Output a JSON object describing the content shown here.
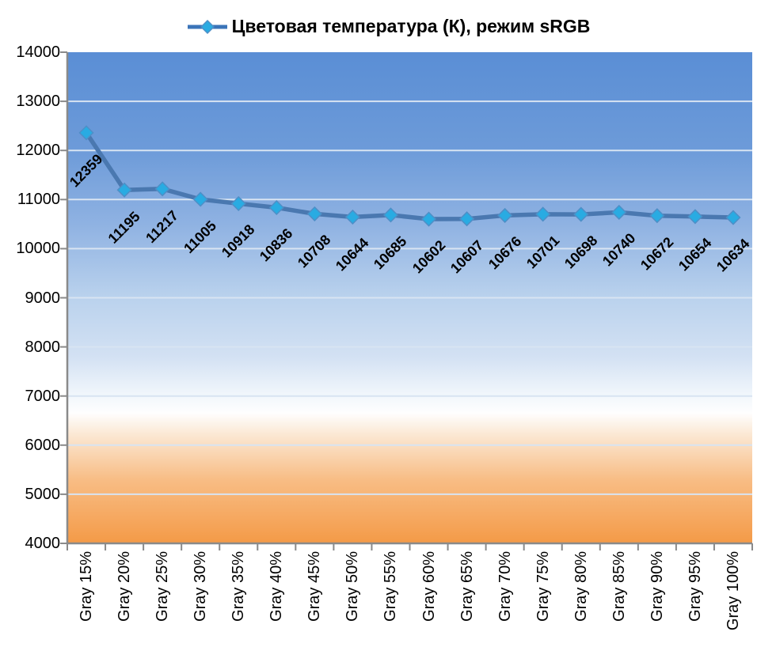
{
  "chart_data": {
    "type": "line",
    "title": "Цветовая температура (К), режим sRGB",
    "categories": [
      "Gray 15%",
      "Gray 20%",
      "Gray 25%",
      "Gray 30%",
      "Gray 35%",
      "Gray 40%",
      "Gray 45%",
      "Gray 50%",
      "Gray 55%",
      "Gray 60%",
      "Gray 65%",
      "Gray 70%",
      "Gray 75%",
      "Gray 80%",
      "Gray 85%",
      "Gray 90%",
      "Gray 95%",
      "Gray 100%"
    ],
    "series": [
      {
        "name": "Цветовая температура (К), режим sRGB",
        "values": [
          12359,
          11195,
          11217,
          11005,
          10918,
          10836,
          10708,
          10644,
          10685,
          10602,
          10607,
          10676,
          10701,
          10698,
          10740,
          10672,
          10654,
          10634
        ]
      }
    ],
    "ylim": [
      4000,
      14000
    ],
    "ytick_step": 1000,
    "yticks": [
      "14000",
      "13000",
      "12000",
      "11000",
      "10000",
      "9000",
      "8000",
      "7000",
      "6000",
      "5000",
      "4000"
    ],
    "grid": true,
    "legend_position": "top",
    "data_labels": true,
    "marker_shape": "diamond",
    "colors": {
      "line": "#4a78b0",
      "marker": "#29abe2",
      "marker_edge": "#4e8fc7",
      "axis": "#8a8a8a",
      "gridline": "#d8e4f2",
      "text": "#000000",
      "plot_gradient": [
        {
          "offset": 0.0,
          "color": "#5a8ed5"
        },
        {
          "offset": 0.2,
          "color": "#6d9bd9"
        },
        {
          "offset": 0.35,
          "color": "#8fb2e2"
        },
        {
          "offset": 0.5,
          "color": "#bad2ed"
        },
        {
          "offset": 0.62,
          "color": "#d3e1f3"
        },
        {
          "offset": 0.7,
          "color": "#f2f7fc"
        },
        {
          "offset": 0.735,
          "color": "#fefefe"
        },
        {
          "offset": 0.78,
          "color": "#fbe7d2"
        },
        {
          "offset": 0.87,
          "color": "#f8bd85"
        },
        {
          "offset": 1.0,
          "color": "#f49a47"
        }
      ]
    }
  }
}
